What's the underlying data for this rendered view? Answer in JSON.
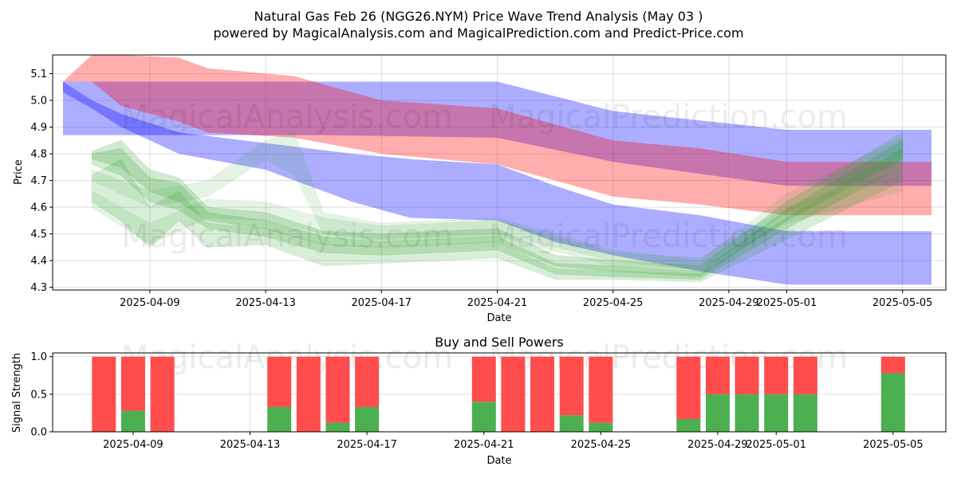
{
  "figure": {
    "title_line1": "Natural Gas Feb 26 (NGG26.NYM) Price Wave Trend Analysis (May 03 )",
    "title_line2": "powered by MagicalAnalysis.com and MagicalPrediction.com and Predict-Price.com",
    "watermark_left": "MagicalAnalysis.com",
    "watermark_right": "MagicalPrediction.com"
  },
  "chart_data": [
    {
      "type": "line",
      "name": "price-wave-chart",
      "xlabel": "Date",
      "ylabel": "Price",
      "xlim": [
        "2025-04-06",
        "2025-05-06"
      ],
      "ylim": [
        4.29,
        5.17
      ],
      "yticks": [
        4.3,
        4.4,
        4.5,
        4.6,
        4.7,
        4.8,
        4.9,
        5.0,
        5.1
      ],
      "ytick_labels": [
        "4.3",
        "4.4",
        "4.5",
        "4.6",
        "4.7",
        "4.8",
        "4.9",
        "5.0",
        "5.1"
      ],
      "xticks": [
        "2025-04-09",
        "2025-04-13",
        "2025-04-17",
        "2025-04-21",
        "2025-04-25",
        "2025-04-29",
        "2025-05-01",
        "2025-05-05"
      ],
      "grid": true,
      "bands": [
        {
          "name": "blue-wave-upper",
          "color": "#0000ff",
          "opacity": 0.32,
          "x": [
            "2025-04-06",
            "2025-04-08",
            "2025-04-10",
            "2025-04-15",
            "2025-04-21",
            "2025-04-25",
            "2025-05-01",
            "2025-05-06"
          ],
          "upper": [
            5.07,
            5.07,
            5.07,
            5.07,
            5.07,
            4.96,
            4.89,
            4.89
          ],
          "lower": [
            4.87,
            4.87,
            4.87,
            4.87,
            4.86,
            4.77,
            4.68,
            4.68
          ]
        },
        {
          "name": "blue-wave-lower",
          "color": "#0000ff",
          "opacity": 0.32,
          "x": [
            "2025-04-06",
            "2025-04-07",
            "2025-04-08",
            "2025-04-10",
            "2025-04-13",
            "2025-04-16",
            "2025-04-18",
            "2025-04-21",
            "2025-04-23",
            "2025-04-25",
            "2025-04-28",
            "2025-05-01",
            "2025-05-06"
          ],
          "upper": [
            5.07,
            5.0,
            4.95,
            4.88,
            4.84,
            4.8,
            4.78,
            4.76,
            4.68,
            4.61,
            4.57,
            4.51,
            4.51
          ],
          "lower": [
            5.03,
            4.97,
            4.9,
            4.8,
            4.74,
            4.62,
            4.56,
            4.55,
            4.47,
            4.42,
            4.36,
            4.31,
            4.31
          ]
        },
        {
          "name": "red-wave",
          "color": "#ff0000",
          "opacity": 0.32,
          "x": [
            "2025-04-06",
            "2025-04-07",
            "2025-04-08",
            "2025-04-10",
            "2025-04-11",
            "2025-04-14",
            "2025-04-17",
            "2025-04-21",
            "2025-04-25",
            "2025-04-28",
            "2025-05-01",
            "2025-05-06"
          ],
          "upper": [
            5.07,
            5.17,
            5.17,
            5.16,
            5.12,
            5.09,
            5.0,
            4.97,
            4.85,
            4.82,
            4.77,
            4.77
          ],
          "lower": [
            5.07,
            5.07,
            4.98,
            4.92,
            4.88,
            4.86,
            4.8,
            4.76,
            4.64,
            4.61,
            4.57,
            4.57
          ]
        }
      ],
      "ribbons": [
        {
          "name": "green-wave-1",
          "color": "#2ca02c",
          "opacity": 0.22,
          "x": [
            "2025-04-07",
            "2025-04-08",
            "2025-04-09",
            "2025-04-10",
            "2025-04-11",
            "2025-04-13",
            "2025-04-15",
            "2025-04-17",
            "2025-04-21",
            "2025-04-23",
            "2025-04-25",
            "2025-04-28",
            "2025-05-01",
            "2025-05-05"
          ],
          "upper": [
            4.81,
            4.85,
            4.74,
            4.71,
            4.6,
            4.58,
            4.51,
            4.5,
            4.52,
            4.42,
            4.4,
            4.38,
            4.62,
            4.88
          ],
          "lower": [
            4.78,
            4.75,
            4.66,
            4.62,
            4.55,
            4.52,
            4.46,
            4.45,
            4.47,
            4.38,
            4.36,
            4.34,
            4.55,
            4.78
          ]
        },
        {
          "name": "green-wave-2",
          "color": "#2ca02c",
          "opacity": 0.22,
          "x": [
            "2025-04-07",
            "2025-04-08",
            "2025-04-09",
            "2025-04-10",
            "2025-04-11",
            "2025-04-13",
            "2025-04-15",
            "2025-04-17",
            "2025-04-21",
            "2025-04-23",
            "2025-04-25",
            "2025-04-28",
            "2025-05-01",
            "2025-05-05"
          ],
          "upper": [
            4.8,
            4.82,
            4.71,
            4.69,
            4.58,
            4.55,
            4.49,
            4.47,
            4.49,
            4.39,
            4.38,
            4.36,
            4.59,
            4.85
          ],
          "lower": [
            4.76,
            4.72,
            4.62,
            4.59,
            4.52,
            4.49,
            4.43,
            4.42,
            4.44,
            4.35,
            4.34,
            4.33,
            4.52,
            4.75
          ]
        },
        {
          "name": "green-wave-3",
          "color": "#2ca02c",
          "opacity": 0.18,
          "x": [
            "2025-04-07",
            "2025-04-08",
            "2025-04-09",
            "2025-04-10",
            "2025-04-11",
            "2025-04-13",
            "2025-04-15",
            "2025-04-17",
            "2025-04-21",
            "2025-04-23",
            "2025-04-25",
            "2025-04-28",
            "2025-05-01",
            "2025-05-05"
          ],
          "upper": [
            4.72,
            4.78,
            4.6,
            4.66,
            4.54,
            4.52,
            4.46,
            4.45,
            4.47,
            4.37,
            4.36,
            4.35,
            4.56,
            4.82
          ],
          "lower": [
            4.62,
            4.55,
            4.45,
            4.55,
            4.45,
            4.46,
            4.38,
            4.39,
            4.41,
            4.33,
            4.33,
            4.32,
            4.48,
            4.7
          ]
        },
        {
          "name": "green-wave-4",
          "color": "#2ca02c",
          "opacity": 0.12,
          "x": [
            "2025-04-07",
            "2025-04-09",
            "2025-04-11",
            "2025-04-13",
            "2025-04-14",
            "2025-04-15",
            "2025-04-17",
            "2025-04-21",
            "2025-04-25",
            "2025-04-28",
            "2025-05-01",
            "2025-05-05"
          ],
          "upper": [
            4.74,
            4.66,
            4.7,
            4.85,
            4.88,
            4.58,
            4.54,
            4.56,
            4.44,
            4.4,
            4.65,
            4.86
          ],
          "lower": [
            4.7,
            4.6,
            4.64,
            4.78,
            4.72,
            4.5,
            4.48,
            4.5,
            4.4,
            4.36,
            4.58,
            4.78
          ]
        },
        {
          "name": "green-wave-5",
          "color": "#2ca02c",
          "opacity": 0.12,
          "x": [
            "2025-04-07",
            "2025-04-09",
            "2025-04-11",
            "2025-04-13",
            "2025-04-15",
            "2025-04-17",
            "2025-04-21",
            "2025-04-25",
            "2025-04-28",
            "2025-05-01",
            "2025-05-05"
          ],
          "upper": [
            4.66,
            4.54,
            4.63,
            4.62,
            4.56,
            4.53,
            4.55,
            4.43,
            4.41,
            4.6,
            4.74
          ],
          "lower": [
            4.6,
            4.46,
            4.56,
            4.55,
            4.5,
            4.47,
            4.49,
            4.38,
            4.37,
            4.54,
            4.66
          ]
        }
      ]
    },
    {
      "type": "bar",
      "name": "buy-sell-powers-chart",
      "title": "Buy and Sell Powers",
      "xlabel": "Date",
      "ylabel": "Signal Strength",
      "xlim": [
        "2025-04-06",
        "2025-05-06"
      ],
      "ylim": [
        0,
        1.05
      ],
      "yticks": [
        0.0,
        0.5,
        1.0
      ],
      "ytick_labels": [
        "0.0",
        "0.5",
        "1.0"
      ],
      "xticks": [
        "2025-04-09",
        "2025-04-13",
        "2025-04-17",
        "2025-04-21",
        "2025-04-25",
        "2025-04-29",
        "2025-05-01",
        "2025-05-05"
      ],
      "buy_color": "#4caf50",
      "sell_color": "#ff4c4c",
      "series": [
        {
          "name": "buy",
          "dates": [
            "2025-04-08",
            "2025-04-09",
            "2025-04-10",
            "2025-04-14",
            "2025-04-15",
            "2025-04-16",
            "2025-04-17",
            "2025-04-21",
            "2025-04-22",
            "2025-04-23",
            "2025-04-24",
            "2025-04-25",
            "2025-04-28",
            "2025-04-29",
            "2025-04-30",
            "2025-05-01",
            "2025-05-02",
            "2025-05-05"
          ],
          "values": [
            0.0,
            0.28,
            0.0,
            0.33,
            0.0,
            0.12,
            0.33,
            0.4,
            0.0,
            0.0,
            0.22,
            0.12,
            0.17,
            0.5,
            0.5,
            0.5,
            0.5,
            0.78
          ]
        },
        {
          "name": "sell",
          "dates": [
            "2025-04-08",
            "2025-04-09",
            "2025-04-10",
            "2025-04-14",
            "2025-04-15",
            "2025-04-16",
            "2025-04-17",
            "2025-04-21",
            "2025-04-22",
            "2025-04-23",
            "2025-04-24",
            "2025-04-25",
            "2025-04-28",
            "2025-04-29",
            "2025-04-30",
            "2025-05-01",
            "2025-05-02",
            "2025-05-05"
          ],
          "values": [
            1.0,
            0.72,
            1.0,
            0.67,
            1.0,
            0.88,
            0.67,
            0.6,
            1.0,
            1.0,
            0.78,
            0.88,
            0.83,
            0.5,
            0.5,
            0.5,
            0.5,
            0.22
          ]
        }
      ]
    }
  ]
}
